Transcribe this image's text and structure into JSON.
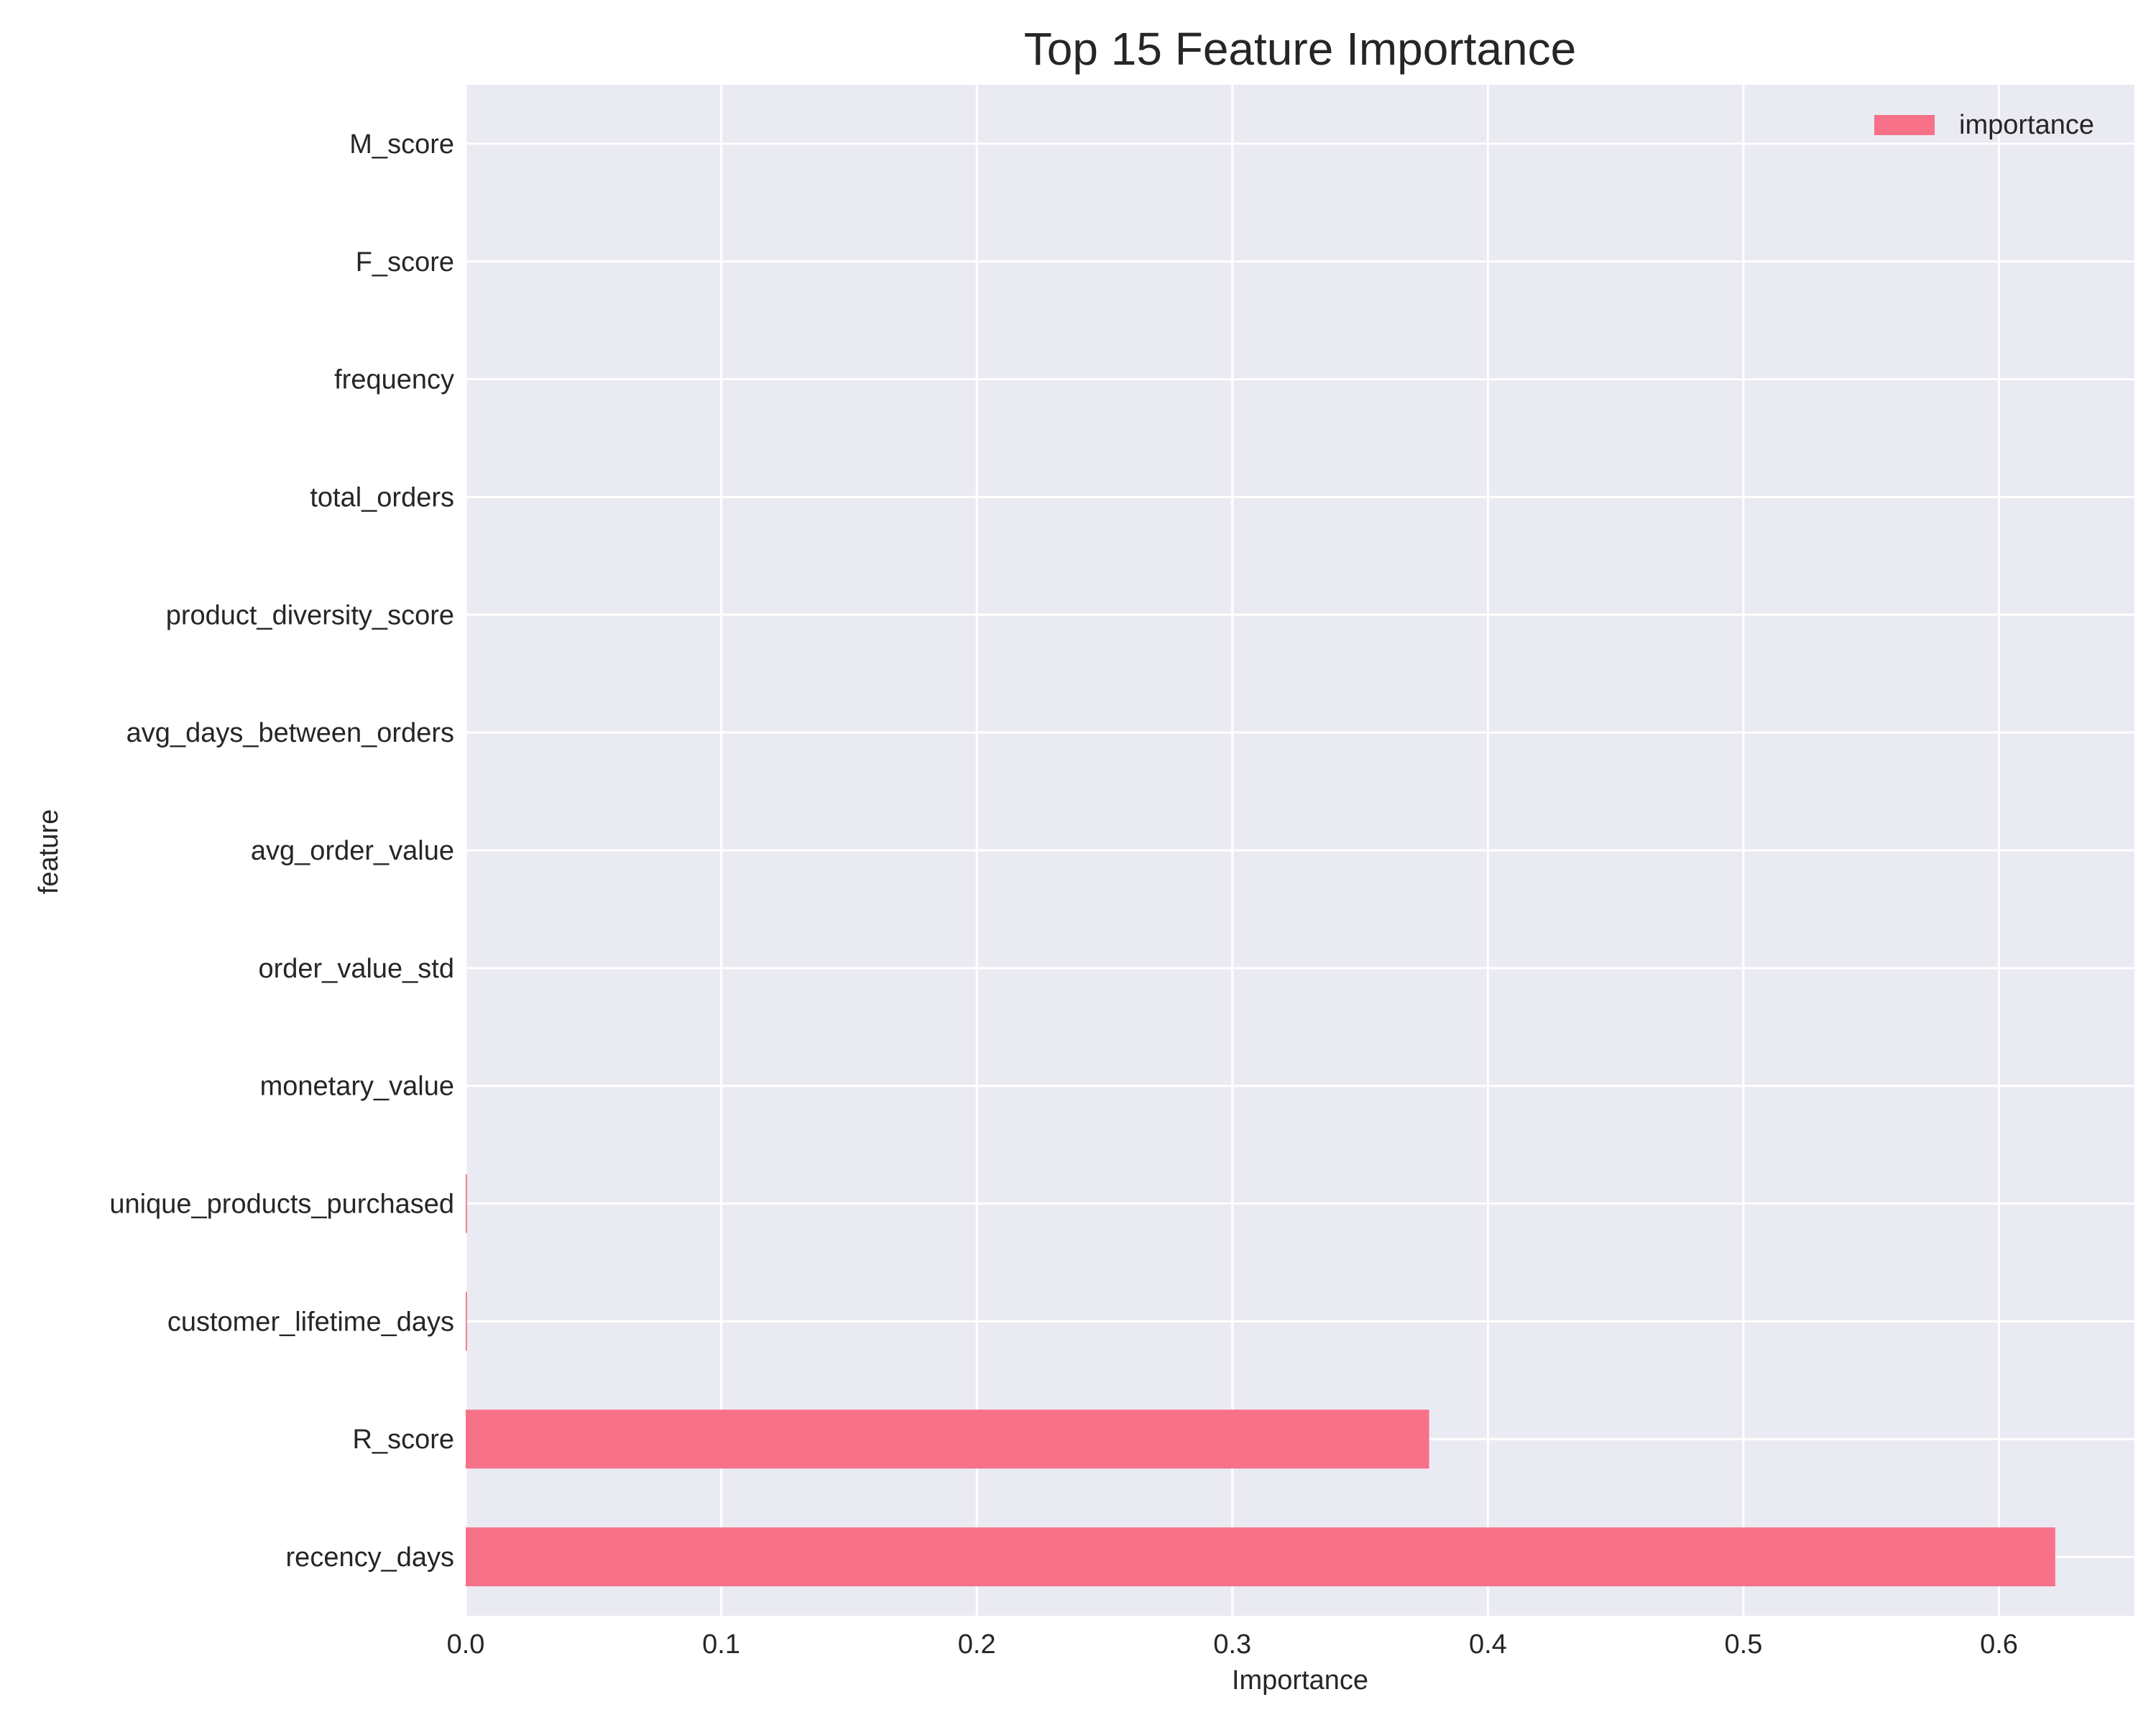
{
  "chart_data": {
    "type": "bar",
    "orientation": "horizontal",
    "title": "Top 15 Feature Importance",
    "xlabel": "Importance",
    "ylabel": "feature",
    "xlim": [
      0,
      0.653
    ],
    "x_ticks": [
      "0.0",
      "0.1",
      "0.2",
      "0.3",
      "0.4",
      "0.5",
      "0.6"
    ],
    "grid": true,
    "legend_position": "top-right",
    "categories": [
      "recency_days",
      "R_score",
      "customer_lifetime_days",
      "unique_products_purchased",
      "monetary_value",
      "order_value_std",
      "avg_order_value",
      "avg_days_between_orders",
      "product_diversity_score",
      "total_orders",
      "frequency",
      "F_score",
      "M_score"
    ],
    "series": [
      {
        "name": "importance",
        "values": [
          0.622,
          0.377,
          0.0005,
          0.0005,
          0,
          0,
          0,
          0,
          0,
          0,
          0,
          0,
          0
        ]
      }
    ],
    "colors": {
      "bar": "#f77189",
      "plot_background": "#eaeaf2",
      "grid": "#ffffff"
    }
  }
}
